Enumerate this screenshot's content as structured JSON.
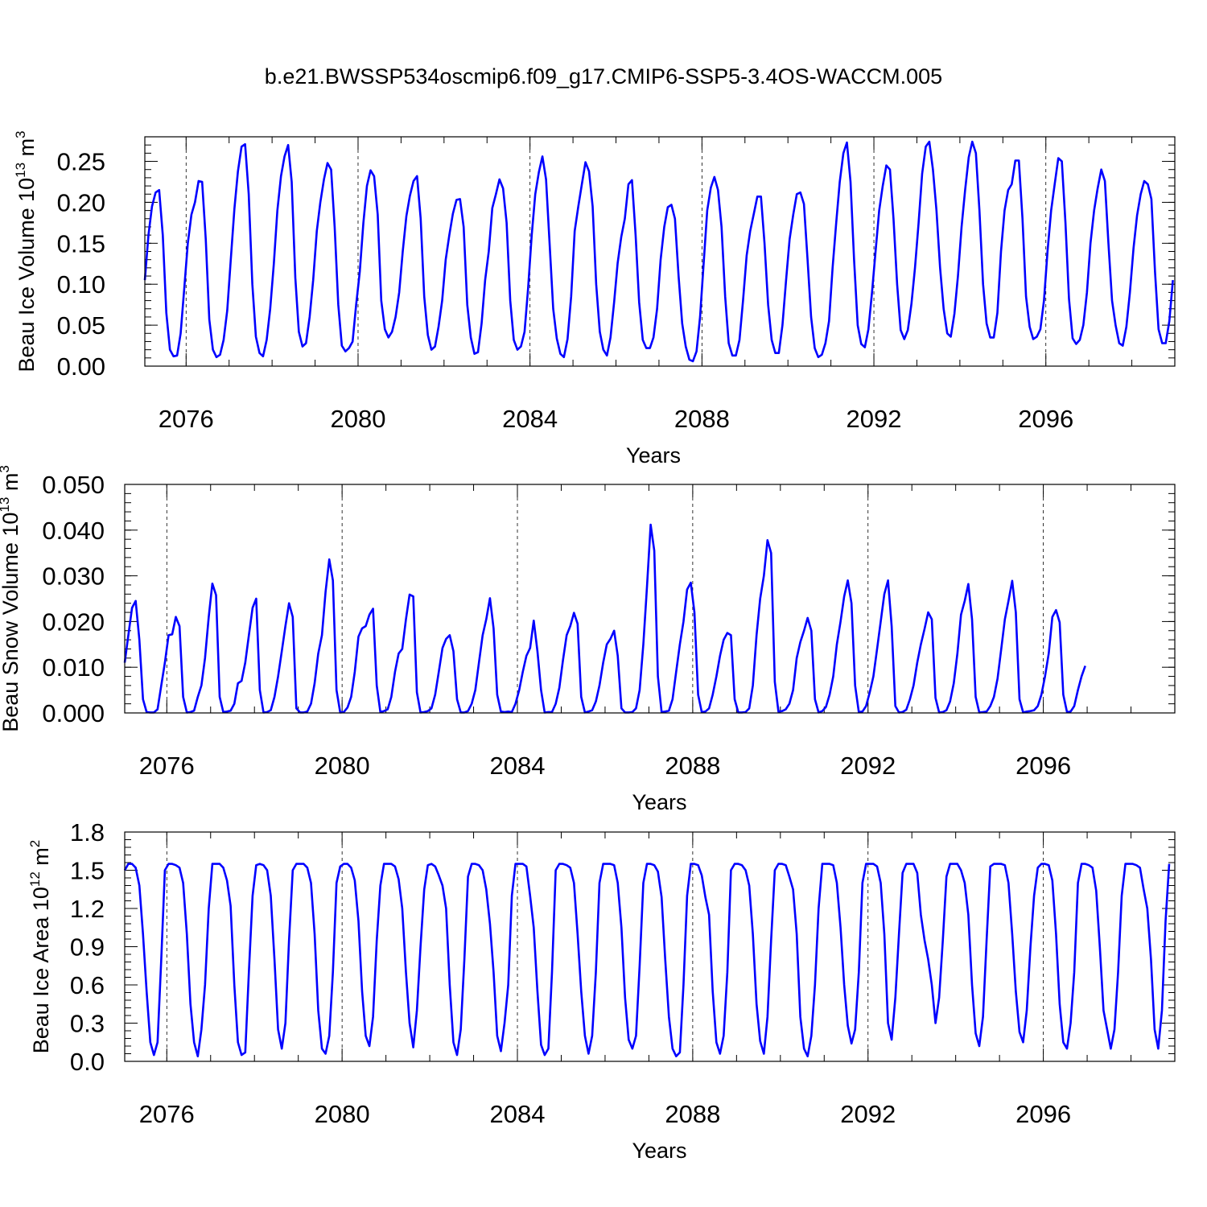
{
  "title": "b.e21.BWSSP534oscmip6.f09_g17.CMIP6-SSP5-3.4OS-WACCM.005",
  "colors": {
    "series": "#0000ff",
    "axis": "#000000",
    "gridline": "#000000"
  },
  "chart_data": [
    {
      "type": "line",
      "ylabel": "Beau Ice Volume 10",
      "ylabel_exp": "13",
      "ylabel_unit": " m",
      "ylabel_unit_exp": "3",
      "xlabel": "Years",
      "xlim": [
        2075.04,
        2099.0
      ],
      "ylim": [
        0.0,
        0.28
      ],
      "xticks": [
        2076,
        2080,
        2084,
        2088,
        2092,
        2096
      ],
      "yticks": [
        0.0,
        0.05,
        0.1,
        0.15,
        0.2,
        0.25
      ],
      "ytick_labels": [
        "0.00",
        "0.05",
        "0.10",
        "0.15",
        "0.20",
        "0.25"
      ],
      "vertical_gridlines": "dashed at major x ticks",
      "series": [
        {
          "start": 2075.04,
          "step": 0.08333,
          "values": [
            0.105,
            0.16,
            0.195,
            0.212,
            0.215,
            0.16,
            0.065,
            0.02,
            0.012,
            0.013,
            0.04,
            0.095,
            0.15,
            0.185,
            0.2,
            0.226,
            0.225,
            0.155,
            0.057,
            0.02,
            0.011,
            0.014,
            0.032,
            0.068,
            0.13,
            0.192,
            0.238,
            0.268,
            0.271,
            0.21,
            0.1,
            0.036,
            0.016,
            0.012,
            0.032,
            0.07,
            0.125,
            0.19,
            0.232,
            0.256,
            0.27,
            0.225,
            0.108,
            0.042,
            0.024,
            0.028,
            0.06,
            0.105,
            0.165,
            0.2,
            0.228,
            0.248,
            0.24,
            0.17,
            0.075,
            0.025,
            0.018,
            0.022,
            0.03,
            0.075,
            0.115,
            0.175,
            0.22,
            0.239,
            0.232,
            0.185,
            0.08,
            0.045,
            0.035,
            0.042,
            0.06,
            0.09,
            0.14,
            0.183,
            0.208,
            0.226,
            0.232,
            0.18,
            0.085,
            0.038,
            0.02,
            0.024,
            0.048,
            0.08,
            0.13,
            0.16,
            0.186,
            0.203,
            0.204,
            0.17,
            0.075,
            0.035,
            0.015,
            0.017,
            0.052,
            0.105,
            0.14,
            0.193,
            0.21,
            0.228,
            0.217,
            0.175,
            0.08,
            0.032,
            0.02,
            0.024,
            0.042,
            0.095,
            0.16,
            0.21,
            0.237,
            0.256,
            0.228,
            0.15,
            0.07,
            0.034,
            0.015,
            0.011,
            0.033,
            0.085,
            0.165,
            0.195,
            0.222,
            0.249,
            0.238,
            0.195,
            0.1,
            0.042,
            0.02,
            0.013,
            0.035,
            0.078,
            0.126,
            0.158,
            0.18,
            0.222,
            0.227,
            0.16,
            0.078,
            0.032,
            0.022,
            0.022,
            0.035,
            0.07,
            0.13,
            0.17,
            0.194,
            0.197,
            0.18,
            0.11,
            0.052,
            0.024,
            0.008,
            0.006,
            0.018,
            0.06,
            0.126,
            0.19,
            0.218,
            0.231,
            0.215,
            0.17,
            0.085,
            0.028,
            0.013,
            0.013,
            0.032,
            0.08,
            0.135,
            0.165,
            0.186,
            0.207,
            0.207,
            0.15,
            0.075,
            0.032,
            0.016,
            0.016,
            0.05,
            0.105,
            0.155,
            0.185,
            0.21,
            0.212,
            0.198,
            0.13,
            0.06,
            0.022,
            0.011,
            0.014,
            0.028,
            0.055,
            0.12,
            0.175,
            0.225,
            0.26,
            0.273,
            0.225,
            0.13,
            0.05,
            0.027,
            0.023,
            0.045,
            0.09,
            0.14,
            0.19,
            0.22,
            0.245,
            0.24,
            0.18,
            0.1,
            0.044,
            0.033,
            0.044,
            0.076,
            0.12,
            0.175,
            0.235,
            0.268,
            0.274,
            0.24,
            0.19,
            0.12,
            0.07,
            0.04,
            0.036,
            0.064,
            0.11,
            0.17,
            0.215,
            0.255,
            0.274,
            0.26,
            0.19,
            0.1,
            0.052,
            0.035,
            0.035,
            0.065,
            0.14,
            0.19,
            0.215,
            0.222,
            0.251,
            0.251,
            0.18,
            0.085,
            0.048,
            0.033,
            0.036,
            0.045,
            0.08,
            0.14,
            0.19,
            0.222,
            0.254,
            0.25,
            0.175,
            0.082,
            0.034,
            0.027,
            0.032,
            0.05,
            0.09,
            0.15,
            0.19,
            0.217,
            0.24,
            0.226,
            0.15,
            0.08,
            0.05,
            0.028,
            0.025,
            0.048,
            0.09,
            0.144,
            0.184,
            0.21,
            0.226,
            0.222,
            0.204,
            0.115,
            0.045,
            0.028,
            0.028,
            0.055,
            0.105
          ]
        }
      ]
    },
    {
      "type": "line",
      "ylabel": "Beau Snow Volume 10",
      "ylabel_exp": "13",
      "ylabel_unit": " m",
      "ylabel_unit_exp": "3",
      "xlabel": "Years",
      "xlim": [
        2075.04,
        2099.0
      ],
      "ylim": [
        0.0,
        0.05
      ],
      "xticks": [
        2076,
        2080,
        2084,
        2088,
        2092,
        2096
      ],
      "yticks": [
        0.0,
        0.01,
        0.02,
        0.03,
        0.04,
        0.05
      ],
      "ytick_labels": [
        "0.000",
        "0.010",
        "0.020",
        "0.030",
        "0.040",
        "0.050"
      ],
      "vertical_gridlines": "dashed at major x ticks",
      "series": [
        {
          "start": 2075.04,
          "step": 0.08333,
          "values": [
            0.011,
            0.017,
            0.023,
            0.0245,
            0.016,
            0.003,
            0.0002,
            0.0001,
            0.0001,
            0.0008,
            0.006,
            0.011,
            0.017,
            0.0172,
            0.021,
            0.019,
            0.0035,
            0.0001,
            0.0002,
            0.0005,
            0.0035,
            0.006,
            0.012,
            0.021,
            0.0283,
            0.0258,
            0.0035,
            0.0002,
            0.0003,
            0.0005,
            0.002,
            0.0065,
            0.007,
            0.011,
            0.017,
            0.023,
            0.025,
            0.005,
            0.0001,
            0.0002,
            0.0006,
            0.0035,
            0.008,
            0.0135,
            0.019,
            0.024,
            0.021,
            0.001,
            0.0001,
            0.0001,
            0.0003,
            0.002,
            0.0065,
            0.013,
            0.017,
            0.0265,
            0.0336,
            0.029,
            0.005,
            0.0001,
            0.0002,
            0.0012,
            0.0035,
            0.009,
            0.0167,
            0.0185,
            0.019,
            0.0215,
            0.0228,
            0.006,
            0.0002,
            0.0004,
            0.0008,
            0.0035,
            0.009,
            0.013,
            0.014,
            0.0205,
            0.0259,
            0.0255,
            0.0045,
            0.0001,
            0.0002,
            0.0004,
            0.001,
            0.004,
            0.009,
            0.0142,
            0.0162,
            0.017,
            0.0135,
            0.003,
            0.0001,
            0.0001,
            0.0004,
            0.002,
            0.005,
            0.011,
            0.017,
            0.0205,
            0.0251,
            0.0185,
            0.004,
            0.0003,
            0.0002,
            0.0003,
            0.0002,
            0.002,
            0.005,
            0.009,
            0.0125,
            0.0142,
            0.0202,
            0.0135,
            0.005,
            0.0001,
            0.0002,
            0.0002,
            0.002,
            0.0055,
            0.0115,
            0.017,
            0.019,
            0.0219,
            0.0195,
            0.0035,
            0.0001,
            0.0003,
            0.0006,
            0.0025,
            0.006,
            0.011,
            0.015,
            0.0162,
            0.018,
            0.0125,
            0.001,
            0.0001,
            0.0001,
            0.0002,
            0.001,
            0.005,
            0.015,
            0.0275,
            0.0412,
            0.0355,
            0.008,
            0.0002,
            0.0003,
            0.0005,
            0.003,
            0.009,
            0.015,
            0.02,
            0.027,
            0.0285,
            0.022,
            0.004,
            0.0002,
            0.0003,
            0.001,
            0.004,
            0.008,
            0.0125,
            0.016,
            0.0175,
            0.017,
            0.003,
            0.0001,
            0.0001,
            0.0002,
            0.001,
            0.006,
            0.017,
            0.025,
            0.03,
            0.0378,
            0.035,
            0.0068,
            0.0003,
            0.0004,
            0.0008,
            0.002,
            0.005,
            0.012,
            0.0155,
            0.018,
            0.0208,
            0.018,
            0.003,
            0.0001,
            0.0004,
            0.0013,
            0.004,
            0.008,
            0.015,
            0.02,
            0.0255,
            0.029,
            0.024,
            0.006,
            0.0002,
            0.0003,
            0.0015,
            0.0045,
            0.008,
            0.014,
            0.02,
            0.026,
            0.029,
            0.019,
            0.0015,
            0.0001,
            0.0002,
            0.0007,
            0.003,
            0.006,
            0.011,
            0.015,
            0.0184,
            0.022,
            0.0205,
            0.0033,
            0.0001,
            0.0002,
            0.0006,
            0.0025,
            0.0065,
            0.013,
            0.0215,
            0.0245,
            0.0282,
            0.0205,
            0.0035,
            0.0001,
            0.0002,
            0.0003,
            0.0015,
            0.0035,
            0.0075,
            0.014,
            0.0205,
            0.0245,
            0.0289,
            0.022,
            0.003,
            0.0001,
            0.0003,
            0.0004,
            0.0006,
            0.0015,
            0.004,
            0.008,
            0.013,
            0.021,
            0.0225,
            0.0198,
            0.004,
            0.0002,
            0.0003,
            0.0015,
            0.005,
            0.008,
            0.0103
          ]
        }
      ]
    },
    {
      "type": "line",
      "ylabel": "Beau Ice Area 10",
      "ylabel_exp": "12",
      "ylabel_unit": " m",
      "ylabel_unit_exp": "2",
      "xlabel": "Years",
      "xlim": [
        2075.04,
        2099.0
      ],
      "ylim": [
        0.0,
        1.8
      ],
      "xticks": [
        2076,
        2080,
        2084,
        2088,
        2092,
        2096
      ],
      "yticks": [
        0.0,
        0.3,
        0.6,
        0.9,
        1.2,
        1.5,
        1.8
      ],
      "ytick_labels": [
        "0.0",
        "0.3",
        "0.6",
        "0.9",
        "1.2",
        "1.5",
        "1.8"
      ],
      "vertical_gridlines": "dashed at major x ticks",
      "series": [
        {
          "start": 2075.04,
          "step": 0.08333,
          "values": [
            1.5,
            1.55,
            1.55,
            1.52,
            1.38,
            1.0,
            0.55,
            0.15,
            0.05,
            0.15,
            0.8,
            1.5,
            1.55,
            1.55,
            1.54,
            1.52,
            1.4,
            1.0,
            0.45,
            0.15,
            0.04,
            0.25,
            0.6,
            1.2,
            1.55,
            1.55,
            1.55,
            1.52,
            1.42,
            1.22,
            0.6,
            0.15,
            0.05,
            0.07,
            0.7,
            1.3,
            1.54,
            1.55,
            1.54,
            1.5,
            1.3,
            0.8,
            0.25,
            0.1,
            0.3,
            0.95,
            1.5,
            1.55,
            1.55,
            1.55,
            1.52,
            1.4,
            1.0,
            0.4,
            0.1,
            0.06,
            0.2,
            0.7,
            1.4,
            1.53,
            1.55,
            1.55,
            1.52,
            1.42,
            1.1,
            0.55,
            0.2,
            0.12,
            0.35,
            0.95,
            1.38,
            1.55,
            1.55,
            1.55,
            1.53,
            1.43,
            1.2,
            0.7,
            0.3,
            0.11,
            0.4,
            0.9,
            1.35,
            1.54,
            1.55,
            1.53,
            1.46,
            1.38,
            1.2,
            0.6,
            0.15,
            0.05,
            0.25,
            0.8,
            1.45,
            1.55,
            1.55,
            1.54,
            1.5,
            1.35,
            1.08,
            0.7,
            0.2,
            0.08,
            0.3,
            0.6,
            1.3,
            1.55,
            1.55,
            1.55,
            1.53,
            1.3,
            1.05,
            0.55,
            0.13,
            0.05,
            0.1,
            0.7,
            1.5,
            1.55,
            1.55,
            1.54,
            1.52,
            1.4,
            1.0,
            0.55,
            0.2,
            0.06,
            0.2,
            0.7,
            1.4,
            1.55,
            1.55,
            1.55,
            1.54,
            1.4,
            1.05,
            0.5,
            0.17,
            0.1,
            0.2,
            0.75,
            1.4,
            1.55,
            1.55,
            1.54,
            1.49,
            1.29,
            0.8,
            0.35,
            0.1,
            0.04,
            0.07,
            0.6,
            1.3,
            1.55,
            1.55,
            1.54,
            1.46,
            1.29,
            1.15,
            0.55,
            0.15,
            0.06,
            0.2,
            0.7,
            1.5,
            1.55,
            1.55,
            1.54,
            1.5,
            1.38,
            1.0,
            0.45,
            0.16,
            0.06,
            0.35,
            0.95,
            1.5,
            1.55,
            1.55,
            1.54,
            1.45,
            1.35,
            1.0,
            0.35,
            0.1,
            0.04,
            0.2,
            0.6,
            1.2,
            1.55,
            1.55,
            1.55,
            1.54,
            1.4,
            1.05,
            0.6,
            0.28,
            0.14,
            0.25,
            0.7,
            1.4,
            1.55,
            1.55,
            1.55,
            1.53,
            1.4,
            1.0,
            0.3,
            0.17,
            0.5,
            1.0,
            1.48,
            1.55,
            1.55,
            1.55,
            1.48,
            1.15,
            0.95,
            0.8,
            0.6,
            0.3,
            0.5,
            0.95,
            1.45,
            1.55,
            1.55,
            1.55,
            1.5,
            1.4,
            1.15,
            0.6,
            0.22,
            0.12,
            0.35,
            0.95,
            1.53,
            1.55,
            1.55,
            1.55,
            1.54,
            1.4,
            1.0,
            0.55,
            0.23,
            0.15,
            0.4,
            0.9,
            1.3,
            1.52,
            1.55,
            1.55,
            1.54,
            1.42,
            1.0,
            0.45,
            0.15,
            0.1,
            0.3,
            0.7,
            1.4,
            1.55,
            1.55,
            1.54,
            1.52,
            1.34,
            0.9,
            0.4,
            0.25,
            0.1,
            0.25,
            0.7,
            1.3,
            1.55,
            1.55,
            1.55,
            1.54,
            1.52,
            1.35,
            1.2,
            0.8,
            0.25,
            0.1,
            0.4,
            1.1,
            1.55
          ]
        }
      ]
    }
  ]
}
